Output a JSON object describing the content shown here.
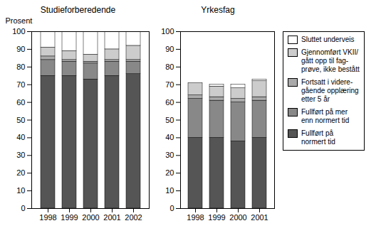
{
  "chart_data": [
    {
      "type": "bar",
      "stacked": true,
      "title": "Studieforberedende",
      "ylabel": "Prosent",
      "categories": [
        "1998",
        "1999",
        "2000",
        "2001",
        "2002"
      ],
      "series": [
        {
          "name": "Fullført på\nnormert tid",
          "color": "#555555",
          "values": [
            75,
            75,
            73,
            75,
            76
          ]
        },
        {
          "name": "Fullført på mer\nenn normert tid",
          "color": "#888888",
          "values": [
            9,
            8,
            9,
            8,
            7
          ]
        },
        {
          "name": "Fortsatt i videre-\ngående opplæring\netter 5 år",
          "color": "#aaaaaa",
          "values": [
            2,
            1,
            1,
            1,
            1
          ]
        },
        {
          "name": "Gjennomført VKII/\ngått opp til fag-\nprøve, ikke bestått",
          "color": "#cccccc",
          "values": [
            5,
            5,
            4,
            6,
            8
          ]
        },
        {
          "name": "Sluttet underveis",
          "color": "#ffffff",
          "values": [
            9,
            11,
            13,
            10,
            8
          ]
        }
      ],
      "ylim": [
        0,
        100
      ],
      "yticks": [
        0,
        10,
        20,
        30,
        40,
        50,
        60,
        70,
        80,
        90,
        100
      ]
    },
    {
      "type": "bar",
      "stacked": true,
      "title": "Yrkesfag",
      "legend": "right",
      "categories": [
        "1998",
        "1999",
        "2000",
        "2001"
      ],
      "series": [
        {
          "name": "Fullført på\nnormert tid",
          "color": "#555555",
          "values": [
            40,
            40,
            38,
            40
          ]
        },
        {
          "name": "Fullført på mer\nenn normert tid",
          "color": "#888888",
          "values": [
            22,
            21,
            22,
            21
          ]
        },
        {
          "name": "Fortsatt i videre-\ngående opplæring\netter 5 år",
          "color": "#aaaaaa",
          "values": [
            2,
            2,
            2,
            2
          ]
        },
        {
          "name": "Gjennomført VKII/\ngått opp til fag-\nprøve, ikke bestått",
          "color": "#cccccc",
          "values": [
            7,
            6,
            6,
            9
          ]
        },
        {
          "name": "Sluttet underveis",
          "color": "#ffffff",
          "values": [
            0,
            1,
            2,
            1
          ]
        }
      ],
      "ylim": [
        0,
        100
      ],
      "yticks": [
        0,
        10,
        20,
        30,
        40,
        50,
        60,
        70,
        80,
        90,
        100
      ]
    }
  ]
}
